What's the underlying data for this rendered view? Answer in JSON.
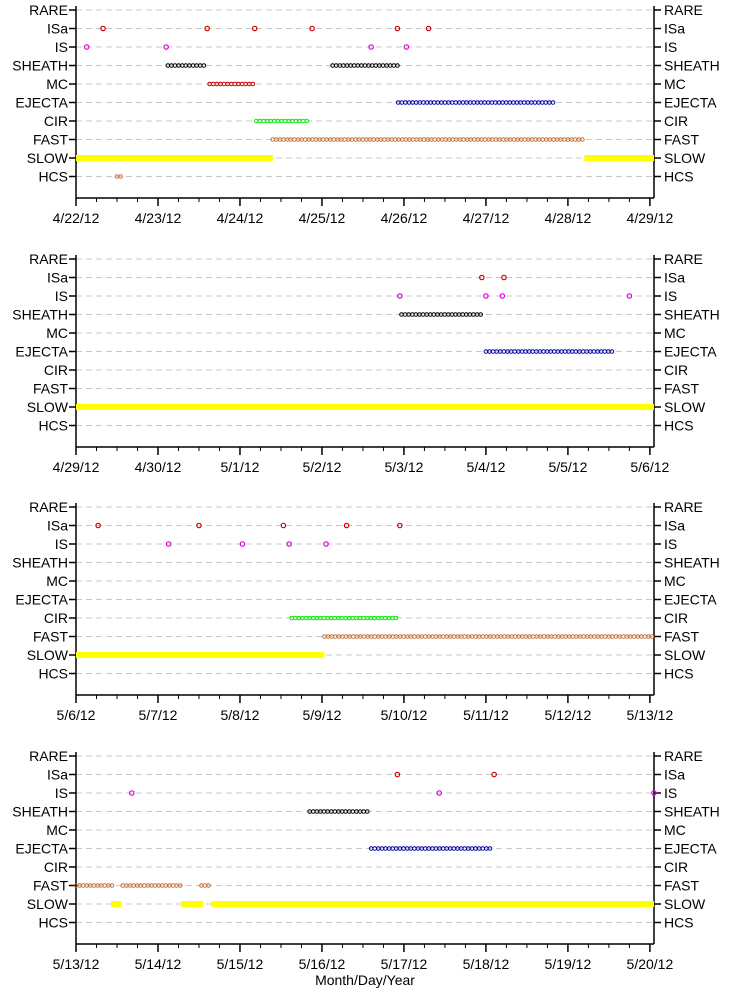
{
  "chart_data": [
    {
      "type": "scatter",
      "panel": 1,
      "categories": [
        "RARE",
        "ISa",
        "IS",
        "SHEATH",
        "MC",
        "EJECTA",
        "CIR",
        "FAST",
        "SLOW",
        "HCS"
      ],
      "x_ticks": [
        "4/22/12",
        "4/23/12",
        "4/24/12",
        "4/25/12",
        "4/26/12",
        "4/27/12",
        "4/28/12",
        "4/29/12"
      ],
      "x_range_days": [
        0,
        7.05
      ],
      "points": [
        {
          "category": "ISa",
          "x": [
            0.33,
            1.6,
            2.18,
            2.88,
            3.92,
            4.3
          ],
          "color": "#cc0000"
        },
        {
          "category": "IS",
          "x": [
            0.13,
            1.1,
            3.6,
            4.03
          ],
          "color": "#dd00dd"
        }
      ],
      "segments": [
        {
          "category": "SHEATH",
          "from": 1.12,
          "to": 1.6,
          "color": "#000000"
        },
        {
          "category": "SHEATH",
          "from": 3.13,
          "to": 3.93,
          "color": "#000000"
        },
        {
          "category": "MC",
          "from": 1.63,
          "to": 2.17,
          "color": "#cc0000"
        },
        {
          "category": "EJECTA",
          "from": 3.93,
          "to": 5.85,
          "color": "#0000aa"
        },
        {
          "category": "CIR",
          "from": 2.2,
          "to": 2.85,
          "color": "#00ee00"
        },
        {
          "category": "FAST",
          "from": 2.4,
          "to": 6.2,
          "color": "#c87137"
        },
        {
          "category": "SLOW",
          "from": 0,
          "to": 2.4,
          "color": "#ffff00",
          "solid": true
        },
        {
          "category": "SLOW",
          "from": 6.2,
          "to": 7.05,
          "color": "#ffff00",
          "solid": true
        },
        {
          "category": "HCS",
          "from": 0.5,
          "to": 0.57,
          "color": "#c87137"
        }
      ]
    },
    {
      "type": "scatter",
      "panel": 2,
      "categories": [
        "RARE",
        "ISa",
        "IS",
        "SHEATH",
        "MC",
        "EJECTA",
        "CIR",
        "FAST",
        "SLOW",
        "HCS"
      ],
      "x_ticks": [
        "4/29/12",
        "4/30/12",
        "5/1/12",
        "5/2/12",
        "5/3/12",
        "5/4/12",
        "5/5/12",
        "5/6/12"
      ],
      "x_range_days": [
        0,
        7.05
      ],
      "points": [
        {
          "category": "ISa",
          "x": [
            4.95,
            5.22
          ],
          "color": "#cc0000"
        },
        {
          "category": "IS",
          "x": [
            3.95,
            5.0,
            5.2,
            6.75
          ],
          "color": "#dd00dd"
        }
      ],
      "segments": [
        {
          "category": "SHEATH",
          "from": 3.97,
          "to": 4.97,
          "color": "#000000"
        },
        {
          "category": "EJECTA",
          "from": 5.0,
          "to": 6.55,
          "color": "#0000aa"
        },
        {
          "category": "SLOW",
          "from": 0,
          "to": 7.05,
          "color": "#ffff00",
          "solid": true
        }
      ]
    },
    {
      "type": "scatter",
      "panel": 3,
      "categories": [
        "RARE",
        "ISa",
        "IS",
        "SHEATH",
        "MC",
        "EJECTA",
        "CIR",
        "FAST",
        "SLOW",
        "HCS"
      ],
      "x_ticks": [
        "5/6/12",
        "5/7/12",
        "5/8/12",
        "5/9/12",
        "5/10/12",
        "5/11/12",
        "5/12/12",
        "5/13/12"
      ],
      "x_range_days": [
        0,
        7.05
      ],
      "points": [
        {
          "category": "ISa",
          "x": [
            0.27,
            1.5,
            2.53,
            3.3,
            3.95
          ],
          "color": "#cc0000"
        },
        {
          "category": "IS",
          "x": [
            1.13,
            2.03,
            2.6,
            3.05
          ],
          "color": "#dd00dd"
        }
      ],
      "segments": [
        {
          "category": "CIR",
          "from": 2.63,
          "to": 3.93,
          "color": "#00ee00"
        },
        {
          "category": "FAST",
          "from": 3.03,
          "to": 7.05,
          "color": "#c87137"
        },
        {
          "category": "SLOW",
          "from": 0,
          "to": 3.03,
          "color": "#ffff00",
          "solid": true
        }
      ]
    },
    {
      "type": "scatter",
      "panel": 4,
      "categories": [
        "RARE",
        "ISa",
        "IS",
        "SHEATH",
        "MC",
        "EJECTA",
        "CIR",
        "FAST",
        "SLOW",
        "HCS"
      ],
      "x_ticks": [
        "5/13/12",
        "5/14/12",
        "5/15/12",
        "5/16/12",
        "5/17/12",
        "5/18/12",
        "5/19/12",
        "5/20/12"
      ],
      "x_range_days": [
        0,
        7.05
      ],
      "xlabel": "Month/Day/Year",
      "points": [
        {
          "category": "ISa",
          "x": [
            3.92,
            5.1
          ],
          "color": "#cc0000"
        },
        {
          "category": "IS",
          "x": [
            0.68,
            4.43,
            7.05
          ],
          "color": "#dd00dd"
        }
      ],
      "segments": [
        {
          "category": "SHEATH",
          "from": 2.85,
          "to": 3.58,
          "color": "#000000"
        },
        {
          "category": "EJECTA",
          "from": 3.6,
          "to": 5.07,
          "color": "#0000aa"
        },
        {
          "category": "FAST",
          "from": 0,
          "to": 0.45,
          "color": "#c87137"
        },
        {
          "category": "FAST",
          "from": 0.57,
          "to": 1.3,
          "color": "#c87137"
        },
        {
          "category": "FAST",
          "from": 1.53,
          "to": 1.65,
          "color": "#c87137"
        },
        {
          "category": "SLOW",
          "from": 0.43,
          "to": 0.55,
          "color": "#ffff00",
          "solid": true
        },
        {
          "category": "SLOW",
          "from": 1.28,
          "to": 1.55,
          "color": "#ffff00",
          "solid": true
        },
        {
          "category": "SLOW",
          "from": 1.65,
          "to": 7.05,
          "color": "#ffff00",
          "solid": true
        }
      ]
    }
  ]
}
